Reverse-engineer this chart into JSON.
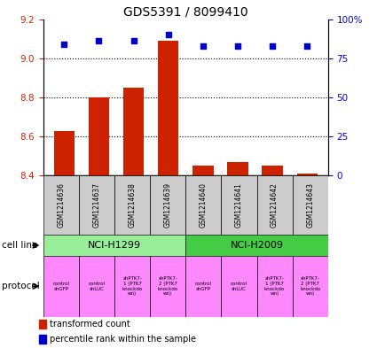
{
  "title": "GDS5391 / 8099410",
  "samples": [
    "GSM1214636",
    "GSM1214637",
    "GSM1214638",
    "GSM1214639",
    "GSM1214640",
    "GSM1214641",
    "GSM1214642",
    "GSM1214643"
  ],
  "transformed_counts": [
    8.63,
    8.8,
    8.85,
    9.09,
    8.45,
    8.47,
    8.45,
    8.41
  ],
  "percentile_ranks": [
    84,
    86,
    86,
    90,
    83,
    83,
    83,
    83
  ],
  "ylim_left": [
    8.4,
    9.2
  ],
  "ylim_right": [
    0,
    100
  ],
  "yticks_left": [
    8.4,
    8.6,
    8.8,
    9.0,
    9.2
  ],
  "yticks_right": [
    0,
    25,
    50,
    75,
    100
  ],
  "ytick_labels_right": [
    "0",
    "25",
    "50",
    "75",
    "100%"
  ],
  "bar_color": "#cc2200",
  "scatter_color": "#0000cc",
  "baseline": 8.4,
  "cell_lines": [
    "NCI-H1299",
    "NCI-H2009"
  ],
  "cell_line_spans": [
    [
      0,
      3
    ],
    [
      4,
      7
    ]
  ],
  "cell_line_color_light": "#99ee99",
  "cell_line_color_dark": "#44cc44",
  "protocols": [
    "control\nshGFP",
    "control\nshLUC",
    "shPTK7-\n1 (PTK7\nknockdo\nwn)",
    "shPTK7-\n2 (PTK7\nknockdo\nwn)",
    "control\nshGFP",
    "control\nshLUC",
    "shPTK7-\n1 (PTK7\nknockdo\nwn)",
    "shPTK7-\n2 (PTK7\nknockdo\nwn)"
  ],
  "protocol_color": "#ff88ff",
  "sample_bg_color": "#cccccc",
  "legend_bar_label": "transformed count",
  "legend_scatter_label": "percentile rank within the sample",
  "cell_line_label": "cell line",
  "protocol_label": "protocol",
  "left_tick_color": "#cc2200",
  "right_tick_color": "#0000cc",
  "grid_dotted_ticks": [
    8.6,
    8.8,
    9.0
  ],
  "bar_width": 0.6
}
